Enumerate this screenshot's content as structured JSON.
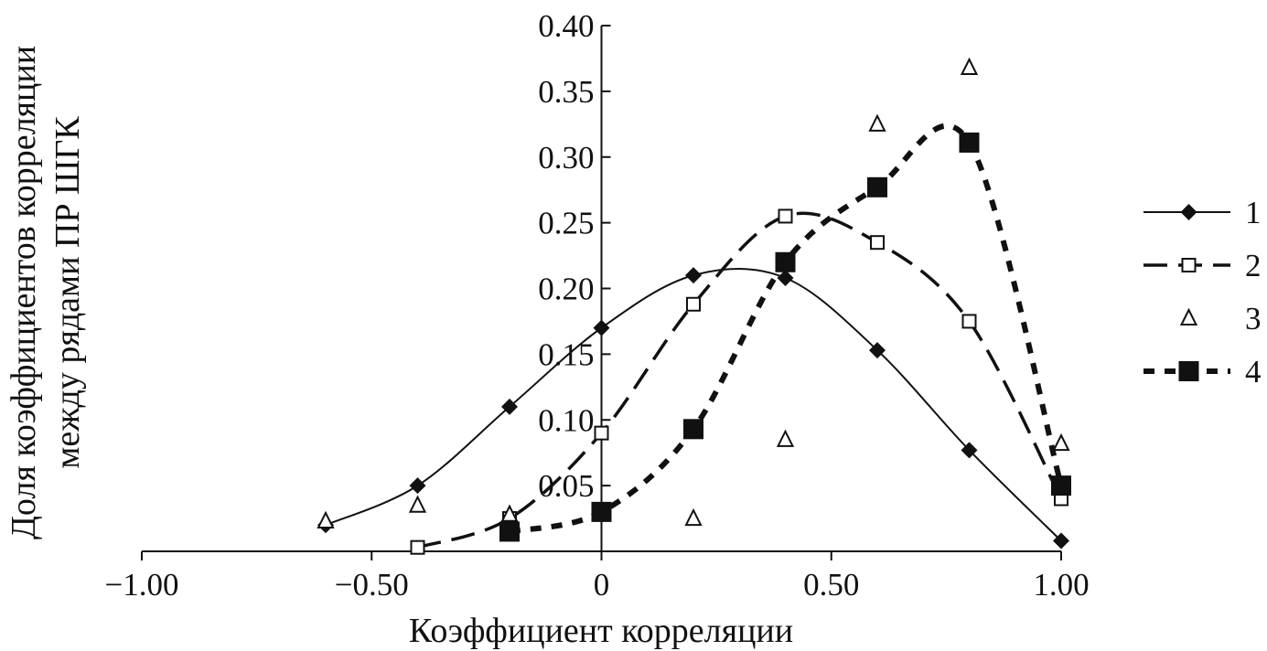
{
  "chart_data": {
    "type": "line",
    "title": "",
    "xlabel": "Коэффициент корреляции",
    "ylabel": [
      "Доля коэффициентов корреляции",
      "между рядами ПР ШГК"
    ],
    "xlim": [
      -1.0,
      1.0
    ],
    "ylim": [
      0,
      0.4
    ],
    "xticks": [
      -1.0,
      -0.5,
      0,
      0.5,
      1.0
    ],
    "xtick_labels": [
      "−1.00",
      "−0.50",
      "0",
      "0.50",
      "1.00"
    ],
    "yticks": [
      0.05,
      0.1,
      0.15,
      0.2,
      0.25,
      0.3,
      0.35,
      0.4
    ],
    "ytick_labels": [
      "0.05",
      "0.10",
      "0.15",
      "0.20",
      "0.25",
      "0.30",
      "0.35",
      "0.40"
    ],
    "grid": false,
    "legend_position": "right",
    "series": [
      {
        "name": "1",
        "line": "solid",
        "marker": "filled-diamond",
        "x": [
          -0.6,
          -0.4,
          -0.2,
          0,
          0.2,
          0.4,
          0.6,
          0.8,
          1.0
        ],
        "y": [
          0.02,
          0.05,
          0.11,
          0.17,
          0.21,
          0.208,
          0.153,
          0.077,
          0.008
        ]
      },
      {
        "name": "2",
        "line": "dash",
        "marker": "open-square",
        "x": [
          -0.4,
          -0.2,
          0,
          0.2,
          0.4,
          0.6,
          0.8,
          1.0
        ],
        "y": [
          0.003,
          0.025,
          0.09,
          0.188,
          0.255,
          0.235,
          0.175,
          0.04
        ]
      },
      {
        "name": "3",
        "line": "none",
        "marker": "open-triangle",
        "x": [
          -0.6,
          -0.4,
          -0.2,
          0.2,
          0.4,
          0.6,
          0.8,
          1.0
        ],
        "y": [
          0.023,
          0.035,
          0.028,
          0.025,
          0.085,
          0.325,
          0.368,
          0.082
        ]
      },
      {
        "name": "4",
        "line": "dot",
        "marker": "filled-square",
        "x": [
          -0.2,
          0,
          0.2,
          0.4,
          0.6,
          0.8,
          1.0
        ],
        "y": [
          0.015,
          0.03,
          0.093,
          0.22,
          0.277,
          0.311,
          0.05
        ]
      }
    ]
  }
}
